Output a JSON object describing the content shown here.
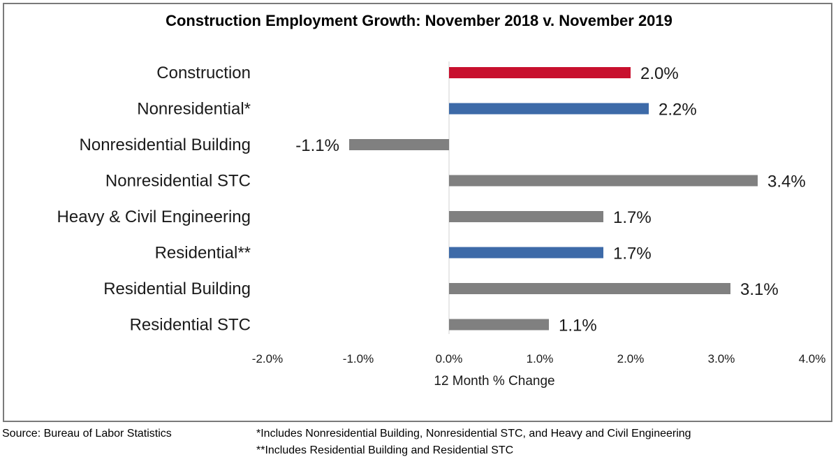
{
  "chart_data": {
    "type": "bar",
    "orientation": "horizontal",
    "title": "Construction Employment Growth: November 2018 v. November 2019",
    "xlabel": "12 Month % Change",
    "ylabel": "",
    "xlim": [
      -2.0,
      4.0
    ],
    "x_ticks": [
      -2.0,
      -1.0,
      0.0,
      1.0,
      2.0,
      3.0,
      4.0
    ],
    "x_tick_labels": [
      "-2.0%",
      "-1.0%",
      "0.0%",
      "1.0%",
      "2.0%",
      "3.0%",
      "4.0%"
    ],
    "grid": false,
    "categories": [
      "Construction",
      "Nonresidential*",
      "Nonresidential Building",
      "Nonresidential STC",
      "Heavy & Civil Engineering",
      "Residential**",
      "Residential Building",
      "Residential STC"
    ],
    "values": [
      2.0,
      2.2,
      -1.1,
      3.4,
      1.7,
      1.7,
      3.1,
      1.1
    ],
    "value_labels": [
      "2.0%",
      "2.2%",
      "-1.1%",
      "3.4%",
      "1.7%",
      "1.7%",
      "3.1%",
      "1.1%"
    ],
    "bar_colors": [
      "#c8102e",
      "#3d6aa8",
      "#808080",
      "#808080",
      "#808080",
      "#3d6aa8",
      "#808080",
      "#808080"
    ]
  },
  "footer": {
    "source": "Source:  Bureau of Labor Statistics",
    "note1": "*Includes Nonresidential Building, Nonresidential STC, and Heavy and Civil Engineering",
    "note2": "**Includes Residential Building and Residential STC"
  }
}
